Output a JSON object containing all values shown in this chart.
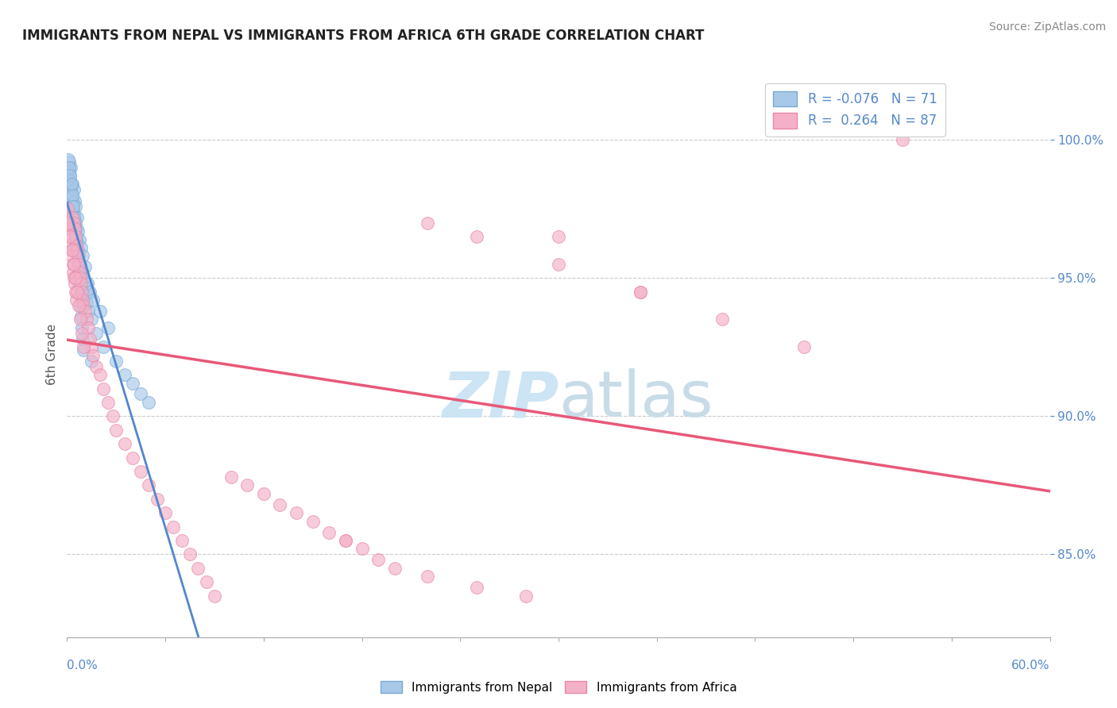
{
  "title": "IMMIGRANTS FROM NEPAL VS IMMIGRANTS FROM AFRICA 6TH GRADE CORRELATION CHART",
  "source": "Source: ZipAtlas.com",
  "ylabel": "6th Grade",
  "xlim": [
    0.0,
    60.0
  ],
  "ylim": [
    82.0,
    102.5
  ],
  "y_ticks": [
    85.0,
    90.0,
    95.0,
    100.0
  ],
  "legend_r1": "R = -0.076",
  "legend_n1": "N = 71",
  "legend_r2": "R =  0.264",
  "legend_n2": "N = 87",
  "nepal_color": "#a8c8e8",
  "africa_color": "#f4b0c8",
  "nepal_edge": "#78aad4",
  "africa_edge": "#e888a8",
  "trend_nepal_color": "#5588cc",
  "trend_africa_color": "#e85878",
  "dashed_color": "#99bbdd",
  "watermark_color": "#cce4f4",
  "axis_label_color": "#5588cc",
  "nepal_scatter_x": [
    0.05,
    0.08,
    0.1,
    0.12,
    0.15,
    0.18,
    0.2,
    0.22,
    0.25,
    0.28,
    0.3,
    0.32,
    0.35,
    0.38,
    0.4,
    0.42,
    0.45,
    0.48,
    0.5,
    0.52,
    0.55,
    0.58,
    0.6,
    0.62,
    0.65,
    0.68,
    0.7,
    0.75,
    0.8,
    0.85,
    0.9,
    0.95,
    1.0,
    1.05,
    1.1,
    1.15,
    1.2,
    1.25,
    1.3,
    1.4,
    1.5,
    1.6,
    1.8,
    2.0,
    2.2,
    2.5,
    3.0,
    3.5,
    4.0,
    4.5,
    5.0,
    0.1,
    0.15,
    0.2,
    0.25,
    0.3,
    0.35,
    0.4,
    0.45,
    0.5,
    0.55,
    0.6,
    0.65,
    0.7,
    0.75,
    0.8,
    0.85,
    0.9,
    0.95,
    1.0,
    1.5
  ],
  "nepal_scatter_y": [
    99.0,
    98.8,
    98.6,
    99.2,
    98.9,
    98.7,
    98.5,
    99.0,
    98.3,
    98.1,
    97.9,
    98.4,
    97.7,
    97.5,
    98.2,
    97.3,
    97.1,
    97.8,
    97.0,
    97.6,
    96.8,
    96.5,
    97.2,
    96.3,
    96.0,
    96.7,
    95.8,
    96.4,
    95.5,
    96.1,
    95.2,
    95.8,
    95.0,
    94.7,
    95.4,
    94.4,
    94.1,
    94.8,
    93.8,
    94.5,
    93.5,
    94.2,
    93.0,
    93.8,
    92.5,
    93.2,
    92.0,
    91.5,
    91.2,
    90.8,
    90.5,
    99.3,
    99.0,
    98.7,
    98.4,
    98.0,
    97.6,
    97.2,
    96.8,
    96.4,
    96.0,
    95.6,
    95.2,
    94.8,
    94.4,
    94.0,
    93.6,
    93.2,
    92.8,
    92.4,
    92.0
  ],
  "africa_scatter_x": [
    0.05,
    0.1,
    0.12,
    0.15,
    0.18,
    0.2,
    0.22,
    0.25,
    0.28,
    0.3,
    0.35,
    0.38,
    0.4,
    0.42,
    0.45,
    0.48,
    0.5,
    0.52,
    0.55,
    0.58,
    0.6,
    0.65,
    0.7,
    0.75,
    0.8,
    0.85,
    0.9,
    0.95,
    1.0,
    1.1,
    1.2,
    1.3,
    1.4,
    1.5,
    1.6,
    1.8,
    2.0,
    2.2,
    2.5,
    2.8,
    3.0,
    3.5,
    4.0,
    4.5,
    5.0,
    5.5,
    6.0,
    6.5,
    7.0,
    7.5,
    8.0,
    8.5,
    9.0,
    10.0,
    11.0,
    12.0,
    13.0,
    14.0,
    15.0,
    16.0,
    17.0,
    18.0,
    19.0,
    20.0,
    22.0,
    25.0,
    28.0,
    30.0,
    35.0,
    40.0,
    45.0,
    51.0,
    0.1,
    0.2,
    0.3,
    0.4,
    0.5,
    0.6,
    0.7,
    0.8,
    0.9,
    1.0,
    17.0,
    22.0,
    25.0,
    30.0,
    35.0
  ],
  "africa_scatter_y": [
    97.5,
    97.2,
    97.0,
    96.8,
    96.5,
    96.2,
    96.8,
    96.0,
    95.8,
    97.2,
    95.5,
    95.2,
    97.0,
    95.0,
    96.8,
    94.8,
    96.5,
    94.5,
    96.2,
    94.2,
    96.0,
    95.8,
    95.5,
    95.2,
    95.0,
    94.8,
    94.5,
    94.2,
    94.0,
    93.8,
    93.5,
    93.2,
    92.8,
    92.5,
    92.2,
    91.8,
    91.5,
    91.0,
    90.5,
    90.0,
    89.5,
    89.0,
    88.5,
    88.0,
    87.5,
    87.0,
    86.5,
    86.0,
    85.5,
    85.0,
    84.5,
    84.0,
    83.5,
    87.8,
    87.5,
    87.2,
    86.8,
    86.5,
    86.2,
    85.8,
    85.5,
    85.2,
    84.8,
    84.5,
    84.2,
    83.8,
    83.5,
    96.5,
    94.5,
    93.5,
    92.5,
    100.0,
    97.0,
    96.5,
    96.0,
    95.5,
    95.0,
    94.5,
    94.0,
    93.5,
    93.0,
    92.5,
    85.5,
    97.0,
    96.5,
    95.5,
    94.5
  ]
}
